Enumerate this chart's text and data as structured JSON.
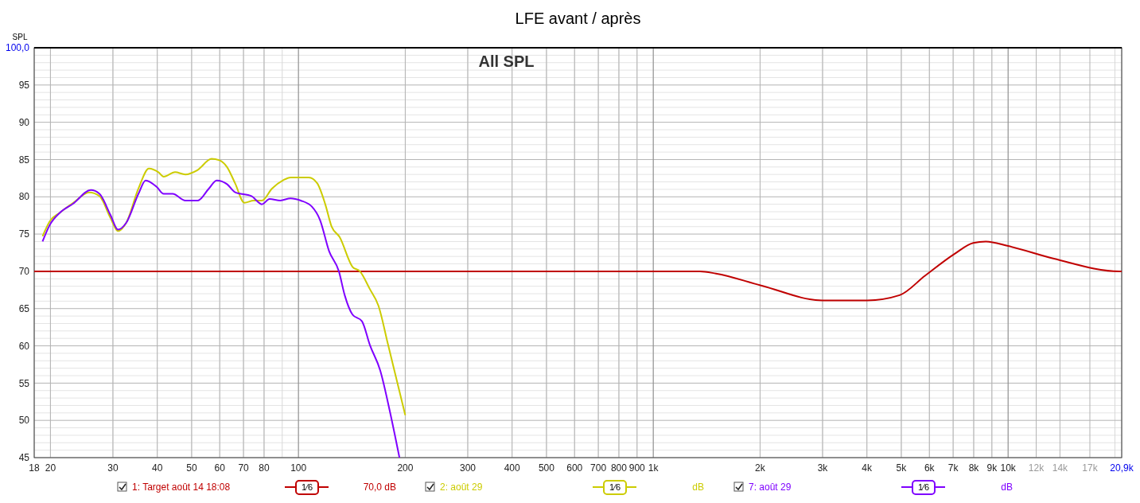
{
  "chart_data": {
    "type": "line",
    "title": "LFE avant / après",
    "subtitle": "All SPL",
    "ylabel": "SPL",
    "xlim": [
      18,
      20900
    ],
    "ylim": [
      45,
      100
    ],
    "log": "x",
    "grid": true,
    "legend": "bottom",
    "marker": "none",
    "line_style": "solid",
    "xticks": [
      18,
      20,
      30,
      40,
      50,
      60,
      70,
      80,
      100,
      200,
      300,
      400,
      500,
      600,
      700,
      800,
      900,
      {
        "value": 1000,
        "label": "1k"
      },
      {
        "value": 2000,
        "label": "2k"
      },
      {
        "value": 3000,
        "label": "3k"
      },
      {
        "value": 4000,
        "label": "4k"
      },
      {
        "value": 5000,
        "label": "5k"
      },
      {
        "value": 6000,
        "label": "6k"
      },
      {
        "value": 7000,
        "label": "7k"
      },
      {
        "value": 8000,
        "label": "8k"
      },
      {
        "value": 9000,
        "label": "9k"
      },
      {
        "value": 10000,
        "label": "10k"
      },
      {
        "value": 12000,
        "label": "12k"
      },
      {
        "value": 14000,
        "label": "14k"
      },
      {
        "value": 17000,
        "label": "17k"
      },
      {
        "value": 20900,
        "label": "20,9k"
      }
    ],
    "yticks": [
      45,
      50,
      55,
      60,
      65,
      70,
      75,
      80,
      85,
      90,
      95,
      {
        "value": 100,
        "label": "100,0"
      }
    ],
    "annotations": [
      "1⁄6",
      "70,0 dB",
      "1⁄6",
      "dB",
      "1⁄6",
      "dB"
    ],
    "series": [
      {
        "name": "1: Target août 14 18:08",
        "color": "#c00000",
        "x": [
          18,
          1354,
          1502,
          2013,
          2993,
          4006,
          4946,
          5830,
          7043,
          7976,
          8656,
          10000,
          13470,
          20600,
          20900
        ],
        "values": [
          70,
          70,
          69.7,
          68.1,
          66.1,
          66.1,
          66.8,
          69.4,
          72.3,
          73.8,
          74,
          73.4,
          71.7,
          70,
          70
        ]
      },
      {
        "name": "2: août 29",
        "color": "#cccc00",
        "x": [
          19,
          19.9,
          21.3,
          23.2,
          25.7,
          27.5,
          29.5,
          31,
          32.7,
          35.4,
          37.9,
          40.3,
          41.7,
          44.9,
          48,
          52,
          56.9,
          59.9,
          62.9,
          66.3,
          70.4,
          74.8,
          78.9,
          84.2,
          90.4,
          95,
          100,
          107,
          113,
          119,
          124,
          130.6,
          142,
          149,
          159,
          168,
          179,
          189,
          200
        ],
        "values": [
          74.7,
          76.7,
          77.9,
          79.2,
          80.6,
          80.1,
          77.2,
          75.4,
          76.5,
          81.1,
          83.8,
          83.3,
          82.7,
          83.3,
          83,
          83.6,
          85.1,
          84.9,
          84,
          81.8,
          79.2,
          79.5,
          79.5,
          81.1,
          82.2,
          82.6,
          82.6,
          82.6,
          81.8,
          79,
          76,
          74.6,
          70.6,
          70,
          67.6,
          65.4,
          60.1,
          55.5,
          50.7
        ]
      },
      {
        "name": "7: août 29",
        "color": "#7f00ff",
        "x": [
          19,
          19.9,
          21.3,
          23.2,
          26,
          27.5,
          29.5,
          31,
          32.7,
          35.4,
          37.1,
          39.9,
          41.7,
          44.2,
          48,
          52,
          55.9,
          58.8,
          62.9,
          66.3,
          73.7,
          78.9,
          82.9,
          88.9,
          95,
          101.5,
          109,
          115,
          122,
          130,
          135,
          142,
          151,
          159,
          170,
          181,
          192.6
        ],
        "values": [
          74,
          76.2,
          77.9,
          79.1,
          80.9,
          80.4,
          77.6,
          75.6,
          76.5,
          80.4,
          82.2,
          81.3,
          80.4,
          80.4,
          79.5,
          79.5,
          81.1,
          82.2,
          81.7,
          80.6,
          80.1,
          79,
          79.7,
          79.5,
          79.8,
          79.5,
          78.7,
          76.9,
          72.7,
          70,
          66.8,
          64.2,
          63.3,
          60.1,
          56.7,
          51.2,
          45
        ]
      }
    ]
  }
}
